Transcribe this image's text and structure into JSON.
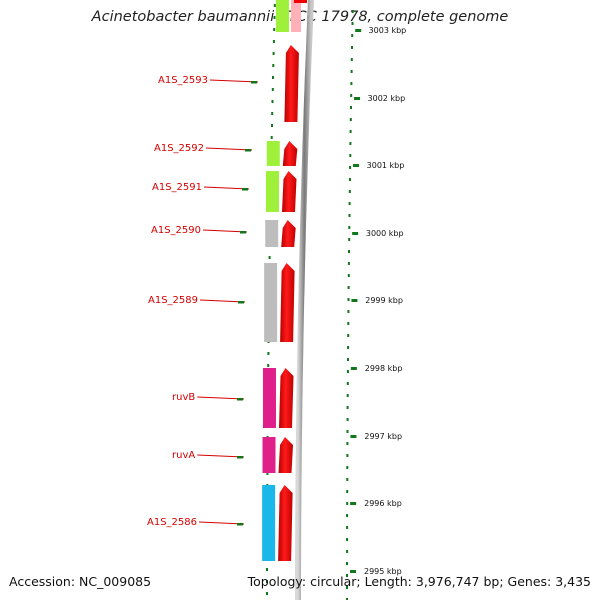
{
  "title": "Acinetobacter baumannii ATCC 17978, complete genome",
  "accession": "Accession: NC_009085",
  "summary": "Topology: circular; Length: 3,976,747 bp; Genes: 3,435",
  "colors": {
    "feature_arrow": "#f00000",
    "label": "#d40000",
    "tick": "#11771a",
    "backbone": "#8a8a8a",
    "cog_green": "#9ef03a",
    "cog_gray": "#bdbdbd",
    "cog_magenta": "#e0208a",
    "cog_cyan": "#1ab8ea",
    "cog_pink": "#ffb0b8"
  },
  "kbp_labels": [
    "3003 kbp",
    "3002 kbp",
    "3001 kbp",
    "3000 kbp",
    "2999 kbp",
    "2998 kbp",
    "2997 kbp",
    "2996 kbp",
    "2995 kbp"
  ],
  "genes": [
    {
      "label": "A1S_2593",
      "cog": "cog_pink"
    },
    {
      "label": "A1S_2592",
      "cog": "cog_green"
    },
    {
      "label": "A1S_2591",
      "cog": "cog_green"
    },
    {
      "label": "A1S_2590",
      "cog": "cog_gray"
    },
    {
      "label": "A1S_2589",
      "cog": "cog_gray"
    },
    {
      "label": "ruvB",
      "cog": "cog_magenta"
    },
    {
      "label": "ruvA",
      "cog": "cog_magenta"
    },
    {
      "label": "A1S_2586",
      "cog": "cog_cyan"
    }
  ]
}
